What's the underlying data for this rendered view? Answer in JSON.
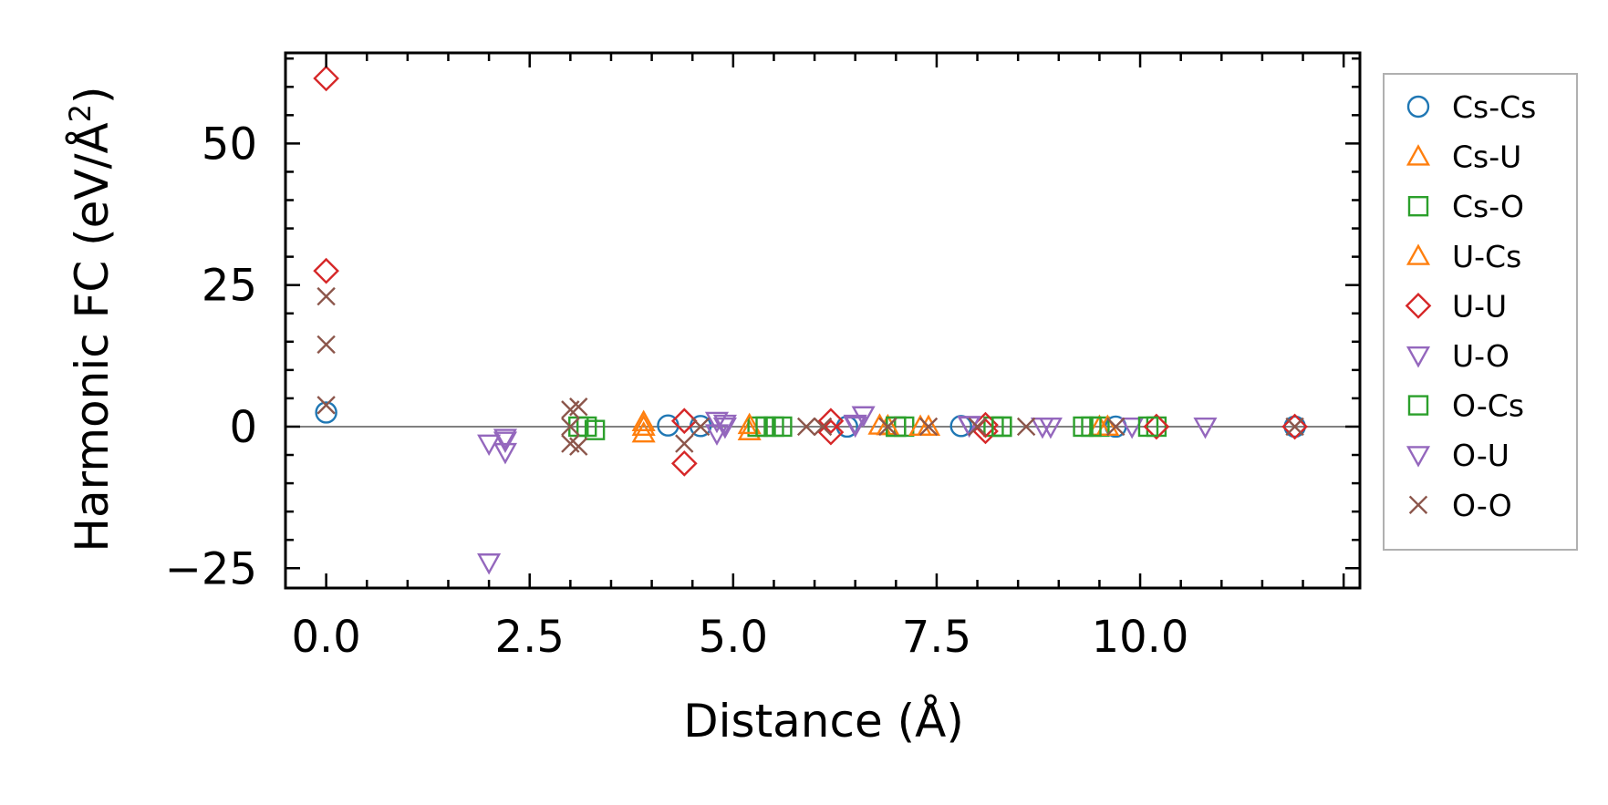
{
  "chart_data": {
    "type": "scatter",
    "title": "",
    "xlabel": "Distance (Å)",
    "ylabel_main": "Harmonic FC (eV/Å",
    "ylabel_sup": "2",
    "ylabel_close": ")",
    "xlim": [
      -0.5,
      12.7
    ],
    "ylim": [
      -28.5,
      66
    ],
    "x_ticks": [
      0.0,
      2.5,
      5.0,
      7.5,
      10.0
    ],
    "x_tick_labels": [
      "0.0",
      "2.5",
      "5.0",
      "7.5",
      "10.0"
    ],
    "y_ticks": [
      -25,
      0,
      25,
      50
    ],
    "y_tick_labels": [
      "−25",
      "0",
      "25",
      "50"
    ],
    "grid": false,
    "zero_line": true,
    "legend_position": "outside-right",
    "series": [
      {
        "name": "Cs-Cs",
        "marker": "circle",
        "color": "#1f77b4",
        "x": [
          0.0,
          4.2,
          4.6,
          6.4,
          7.8,
          9.7,
          11.9
        ],
        "y": [
          2.5,
          0.2,
          0.1,
          0.0,
          0.1,
          0.0,
          0.0
        ]
      },
      {
        "name": "Cs-U",
        "marker": "triangle-up",
        "color": "#ff7f0e",
        "x": [
          3.9,
          3.9,
          5.2,
          6.8,
          7.4,
          9.5
        ],
        "y": [
          0.8,
          -1.2,
          -0.8,
          0.2,
          0.0,
          0.0
        ]
      },
      {
        "name": "Cs-O",
        "marker": "square",
        "color": "#2ca02c",
        "x": [
          3.1,
          3.3,
          5.3,
          5.5,
          5.6,
          7.0,
          7.1,
          8.2,
          8.3,
          9.3,
          9.5,
          10.2
        ],
        "y": [
          0.0,
          -0.6,
          0.0,
          0.0,
          0.0,
          0.0,
          0.0,
          0.0,
          0.0,
          0.0,
          0.0,
          0.0
        ]
      },
      {
        "name": "U-Cs",
        "marker": "triangle-up",
        "color": "#ff7f0e",
        "x": [
          3.9,
          5.2,
          6.9,
          7.3,
          9.6
        ],
        "y": [
          0.0,
          0.3,
          0.1,
          0.0,
          0.0
        ]
      },
      {
        "name": "U-U",
        "marker": "diamond",
        "color": "#d62728",
        "x": [
          0.0,
          0.0,
          4.4,
          4.4,
          6.2,
          6.2,
          8.1,
          8.1,
          10.2,
          11.9
        ],
        "y": [
          61.5,
          27.5,
          1.0,
          -6.5,
          1.0,
          -1.0,
          0.3,
          -0.8,
          0.0,
          0.0
        ]
      },
      {
        "name": "U-O",
        "marker": "triangle-down",
        "color": "#9467bd",
        "x": [
          2.0,
          2.0,
          2.2,
          2.2,
          4.8,
          4.9,
          4.8,
          6.5,
          6.6,
          7.9,
          8.8,
          9.9,
          10.8
        ],
        "y": [
          -24.0,
          -3.0,
          -2.0,
          -4.5,
          1.0,
          0.0,
          -1.2,
          0.5,
          2.0,
          0.2,
          0.0,
          0.0,
          0.0
        ]
      },
      {
        "name": "O-Cs",
        "marker": "square",
        "color": "#2ca02c",
        "x": [
          3.2,
          5.4,
          7.0,
          8.3,
          9.4,
          10.1
        ],
        "y": [
          0.0,
          0.0,
          0.0,
          0.0,
          0.0,
          0.0
        ]
      },
      {
        "name": "O-U",
        "marker": "triangle-down",
        "color": "#9467bd",
        "x": [
          2.2,
          4.9,
          6.5,
          7.9,
          8.9
        ],
        "y": [
          -2.5,
          0.5,
          0.2,
          0.3,
          0.0
        ]
      },
      {
        "name": "O-O",
        "marker": "x",
        "color": "#8c564b",
        "x": [
          0.0,
          0.0,
          0.0,
          3.0,
          3.0,
          3.0,
          3.1,
          3.1,
          4.4,
          4.6,
          5.9,
          6.1,
          6.9,
          7.4,
          8.0,
          8.6,
          9.7,
          11.9
        ],
        "y": [
          23.0,
          14.5,
          3.8,
          3.0,
          0.0,
          -3.0,
          3.5,
          -3.5,
          -3.0,
          0.0,
          0.0,
          0.0,
          0.0,
          0.0,
          0.0,
          0.0,
          0.0,
          0.0
        ]
      }
    ]
  }
}
